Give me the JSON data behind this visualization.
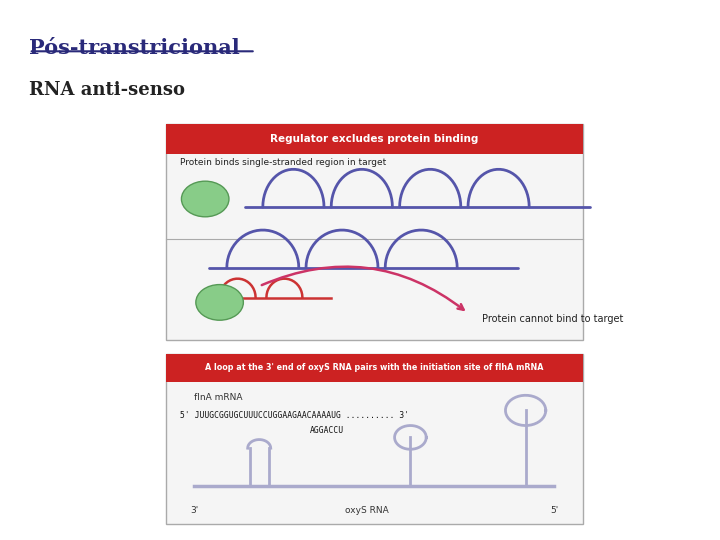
{
  "title": "Pós-transtricional",
  "subtitle": "RNA anti-senso",
  "title_color": "#2a2a7a",
  "subtitle_color": "#222222",
  "bg_color": "#ffffff",
  "img1_header": "Regulator excludes protein binding",
  "img1_header_bg": "#cc2222",
  "img1_header_color": "#ffffff",
  "img1_line1": "Protein binds single-stranded region in target",
  "img1_protein_cannot": "Protein cannot bind to target",
  "img2_header": "A loop at the 3' end of oxyS RNA pairs with the initiation site of flhA mRNA",
  "img2_header_bg": "#cc2222",
  "img2_header_color": "#ffffff",
  "img2_flha": "flnA mRNA",
  "img2_seq": "5' JUUGCGGUGCUUUCCUGGAAGAACAAAAUG .......... 3'",
  "img2_seq2": "AGGACCU",
  "img2_label_oxys": "oxyS RNA",
  "img2_label_3prime": "3'",
  "img2_label_5prime": "5'",
  "rna_loop_color": "#5555aa",
  "antisense_color": "#cc3333",
  "green_color": "#88cc88",
  "green_edge": "#559955",
  "oxy_color": "#aaaacc",
  "arrow_color": "#cc3366",
  "divider_color": "#aaaaaa",
  "box_edge_color": "#aaaaaa",
  "box_face_color": "#f5f5f5"
}
